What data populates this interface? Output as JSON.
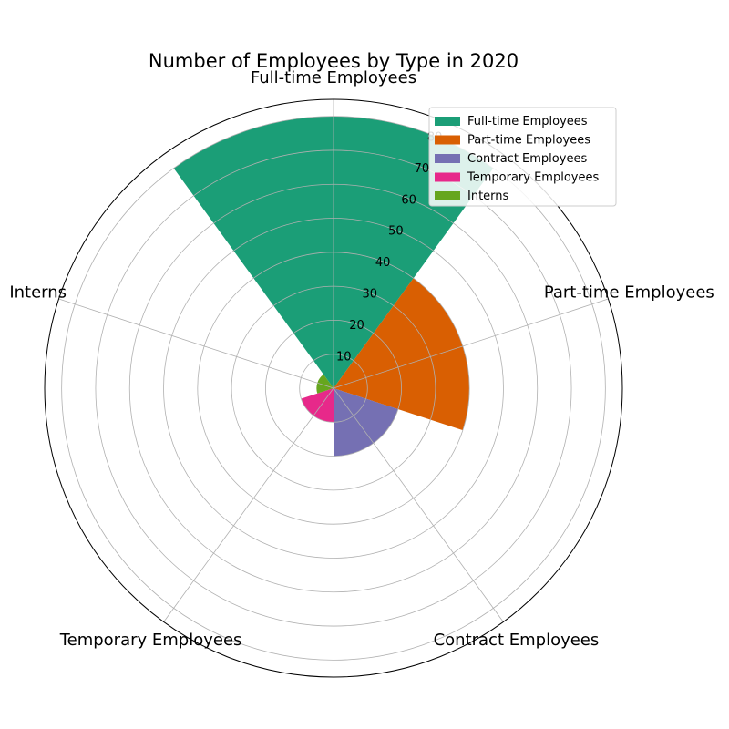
{
  "chart_data": {
    "type": "polar-bar",
    "title": "Number of Employees by Type in 2020",
    "categories": [
      "Full-time Employees",
      "Part-time Employees",
      "Contract Employees",
      "Temporary Employees",
      "Interns"
    ],
    "values": [
      80,
      40,
      20,
      10,
      5
    ],
    "colors": [
      "#1b9e77",
      "#d95f02",
      "#7570b3",
      "#e7298a",
      "#66a61e"
    ],
    "radial_ticks": [
      10,
      20,
      30,
      40,
      50,
      60,
      70,
      80
    ],
    "rmax": 85,
    "grid": true,
    "legend": {
      "position": "top-right",
      "entries": [
        "Full-time Employees",
        "Part-time Employees",
        "Contract Employees",
        "Temporary Employees",
        "Interns"
      ]
    }
  }
}
